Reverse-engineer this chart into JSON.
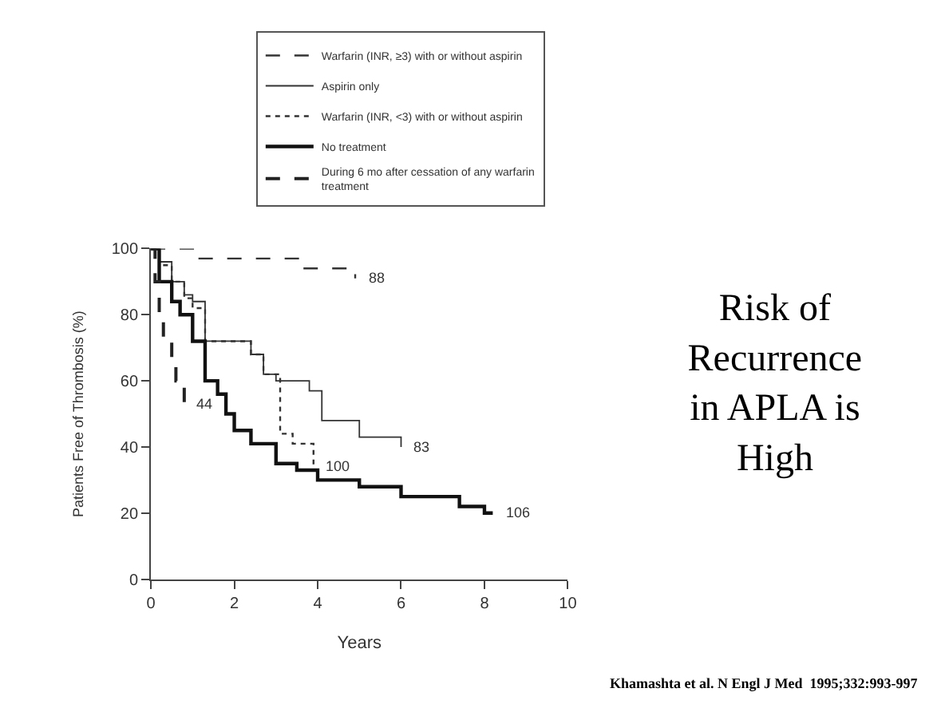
{
  "chart_data": {
    "type": "step",
    "title": "Risk of Recurrence in APLA is High",
    "xlabel": "Years",
    "ylabel": "Patients Free of Thrombosis (%)",
    "series": [
      {
        "name": "Warfarin (INR, ≥3) with or without aspirin",
        "color": "#333333",
        "line_style": "dashed",
        "x": [
          0,
          1.1,
          3.6,
          4.9,
          4.9
        ],
        "values": [
          100,
          97,
          94,
          91,
          91
        ]
      },
      {
        "name": "Aspirin only",
        "color": "#333333",
        "line_style": "solid",
        "x": [
          0,
          0.2,
          0.5,
          0.8,
          1.0,
          1.3,
          2.4,
          2.7,
          3.0,
          3.8,
          4.1,
          5.0,
          6.0,
          6.0
        ],
        "values": [
          100,
          96,
          90,
          86,
          84,
          72,
          68,
          62,
          60,
          57,
          48,
          43,
          40,
          40
        ]
      },
      {
        "name": "Warfarin (INR, <3) with or without aspirin",
        "color": "#333333",
        "line_style": "dotted",
        "x": [
          0,
          0.2,
          0.5,
          0.8,
          1.0,
          1.3,
          2.4,
          2.7,
          3.1,
          3.4,
          3.9,
          3.9
        ],
        "values": [
          100,
          95,
          90,
          85,
          82,
          72,
          68,
          62,
          44,
          41,
          40,
          34
        ]
      },
      {
        "name": "No treatment",
        "color": "#111111",
        "line_style": "solid",
        "x": [
          0,
          0.2,
          0.5,
          0.7,
          1.0,
          1.3,
          1.6,
          1.8,
          2.0,
          2.4,
          3.0,
          3.5,
          4.0,
          5.0,
          6.0,
          7.4,
          8.0,
          8.2
        ],
        "values": [
          100,
          90,
          84,
          80,
          72,
          60,
          56,
          50,
          45,
          41,
          35,
          33,
          30,
          28,
          25,
          22,
          20,
          20
        ]
      },
      {
        "name": "During 6 mo after cessation of any warfarin treatment",
        "color": "#222222",
        "line_style": "dashed",
        "x": [
          0,
          0.1,
          0.2,
          0.3,
          0.5,
          0.6,
          0.8,
          0.8
        ],
        "values": [
          100,
          90,
          80,
          73,
          65,
          60,
          53,
          53
        ]
      }
    ],
    "xlim": [
      0,
      10
    ],
    "xticks": [
      0,
      2,
      4,
      6,
      8,
      10
    ],
    "ylim": [
      0,
      100
    ],
    "yticks": [
      0,
      20,
      40,
      60,
      80,
      100
    ],
    "legend": "top",
    "marker": "none",
    "annotations": [
      "88",
      "83",
      "100",
      "106",
      "44",
      "Khamashta et al. N Engl J Med  1995;332:993-997"
    ]
  }
}
